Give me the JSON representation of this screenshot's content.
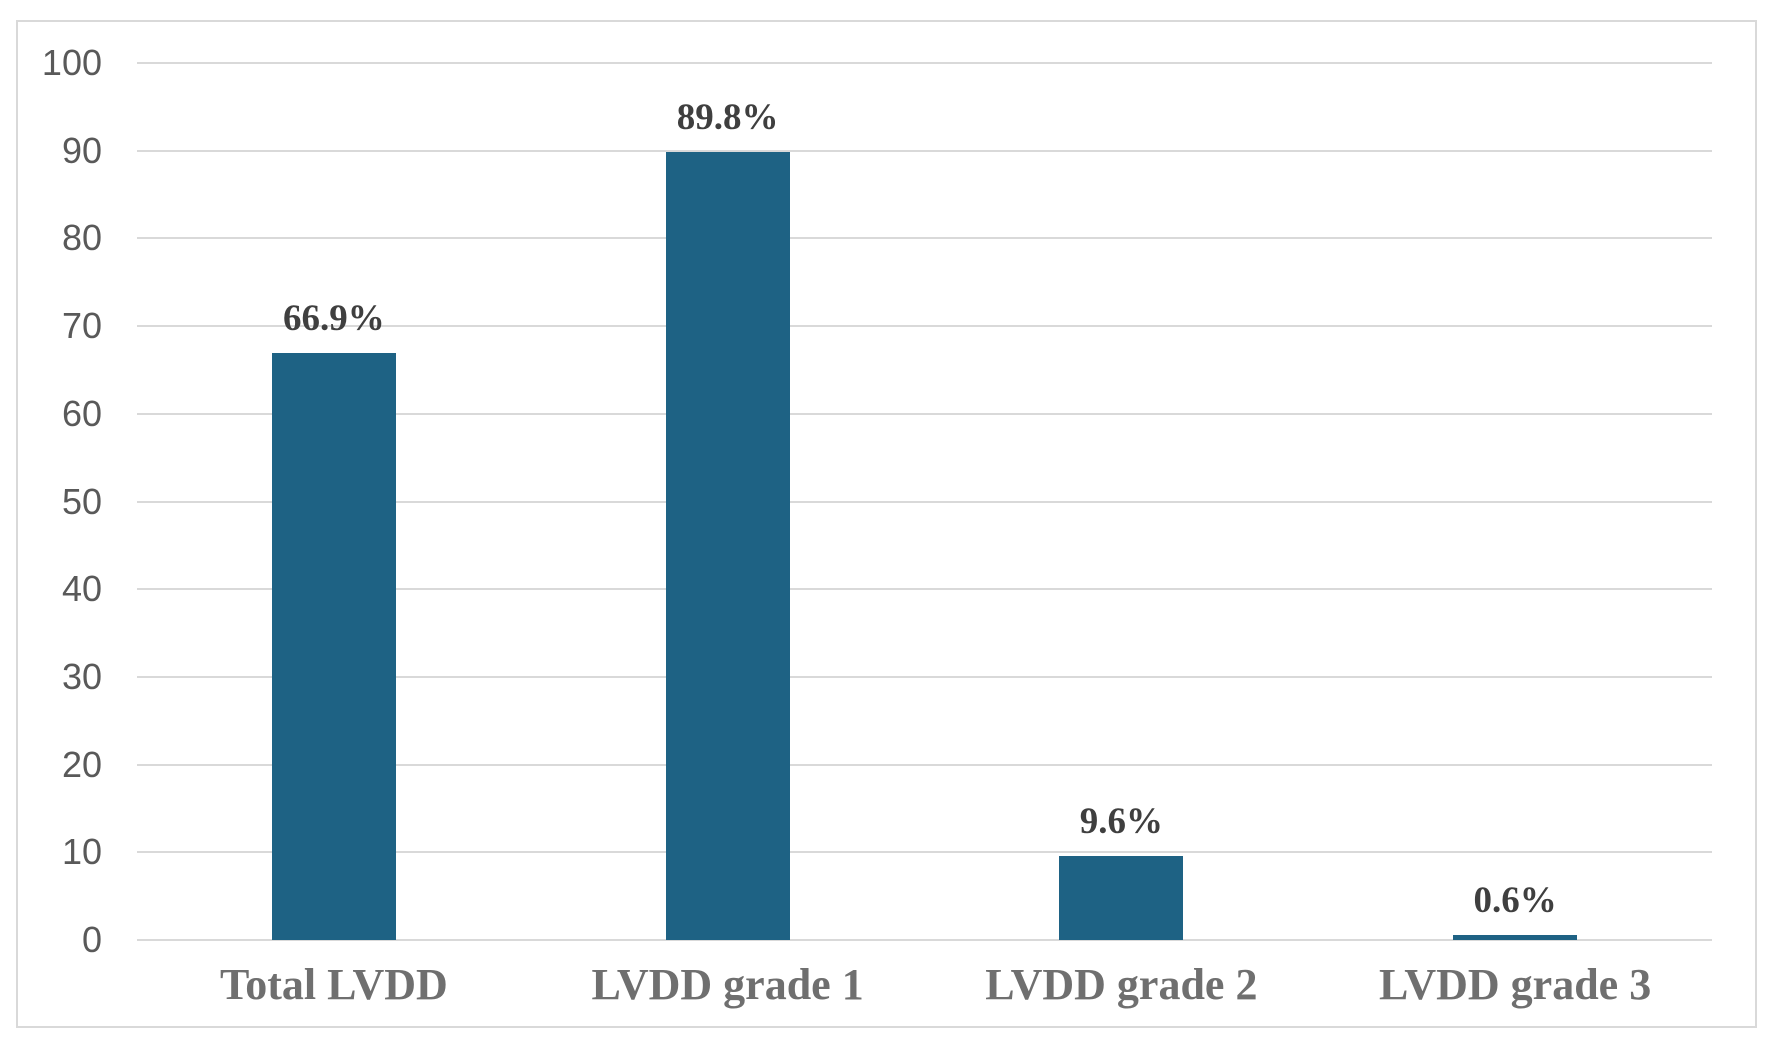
{
  "chart_data": {
    "type": "bar",
    "title": "",
    "xlabel": "",
    "ylabel": "",
    "categories": [
      "Total LVDD",
      "LVDD grade 1",
      "LVDD grade 2",
      "LVDD grade 3"
    ],
    "values": [
      66.9,
      89.8,
      9.6,
      0.6
    ],
    "data_labels": [
      "66.9%",
      "89.8%",
      "9.6%",
      "0.6%"
    ],
    "ylim": [
      0,
      100
    ],
    "yticks": [
      0,
      10,
      20,
      30,
      40,
      50,
      60,
      70,
      80,
      90,
      100
    ],
    "grid": true,
    "legend": false,
    "colors": {
      "bar": "#1e6284",
      "gridline": "#d9d9d9",
      "frame_border": "#d9d9d9",
      "tick_label": "#595959",
      "data_label": "#3f3f3f",
      "category_label": "#6f6f6f",
      "background": "#ffffff"
    }
  }
}
